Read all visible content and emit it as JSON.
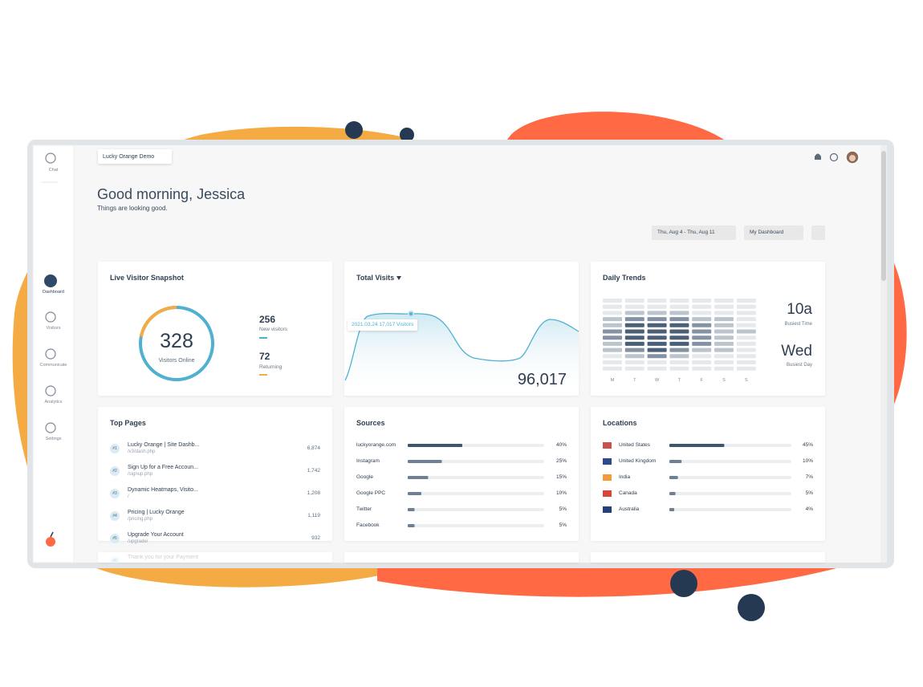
{
  "header": {
    "workspace": "Lucky Orange Demo",
    "greeting": "Good morning, Jessica",
    "subtitle": "Things are looking good.",
    "date_range": "Thu, Aug 4 - Thu, Aug 11",
    "dashboard": "My Dashboard"
  },
  "sidebar": [
    "Chat",
    "Dashboard",
    "Visitors",
    "Communicate",
    "Analytics",
    "Settings"
  ],
  "live_snapshot": {
    "title": "Live Visitor Snapshot",
    "visitors_online": 328,
    "online_label": "Visitors Online",
    "new_visitors": 256,
    "new_label": "New visitors",
    "returning": 72,
    "returning_label": "Returning"
  },
  "total_visits": {
    "title": "Total Visits",
    "tooltip": "2021.03.24 17,017 Visitors",
    "total": "96,017"
  },
  "daily_trends": {
    "title": "Daily Trends",
    "days": [
      "M",
      "T",
      "W",
      "T",
      "F",
      "S",
      "S"
    ],
    "busiest_time": "10a",
    "busiest_time_label": "Busiest Time",
    "busiest_day": "Wed",
    "busiest_day_label": "Busiest Day"
  },
  "top_pages": {
    "title": "Top Pages",
    "rows": [
      {
        "rank": "#1",
        "title": "Lucky Orange | Site Dashb...",
        "path": "/v3/dash.php",
        "count": "6,874"
      },
      {
        "rank": "#2",
        "title": "Sign Up for a Free Accoun...",
        "path": "/signup.php",
        "count": "1,742"
      },
      {
        "rank": "#3",
        "title": "Dynamic Heatmaps, Visito...",
        "path": "/",
        "count": "1,208"
      },
      {
        "rank": "#4",
        "title": "Pricing | Lucky Orange",
        "path": "/pricing.php",
        "count": "1,119"
      },
      {
        "rank": "#5",
        "title": "Upgrade Your Account",
        "path": "/upgrade/",
        "count": "932"
      },
      {
        "rank": "#6",
        "title": "Thank you for your Payment"
      }
    ]
  },
  "sources": {
    "title": "Sources",
    "rows": [
      {
        "name": "luckyorange.com",
        "value": 40,
        "label": "40%"
      },
      {
        "name": "Instagram",
        "value": 25,
        "label": "25%"
      },
      {
        "name": "Google",
        "value": 15,
        "label": "15%"
      },
      {
        "name": "Google PPC",
        "value": 10,
        "label": "10%"
      },
      {
        "name": "Twitter",
        "value": 5,
        "label": "5%"
      },
      {
        "name": "Facebook",
        "value": 5,
        "label": "5%"
      }
    ]
  },
  "locations": {
    "title": "Locations",
    "rows": [
      {
        "name": "United States",
        "value": 45,
        "label": "45%"
      },
      {
        "name": "United Kingdom",
        "value": 10,
        "label": "10%"
      },
      {
        "name": "India",
        "value": 7,
        "label": "7%"
      },
      {
        "name": "Canada",
        "value": 5,
        "label": "5%"
      },
      {
        "name": "Australia",
        "value": 4,
        "label": "4%"
      }
    ]
  }
}
